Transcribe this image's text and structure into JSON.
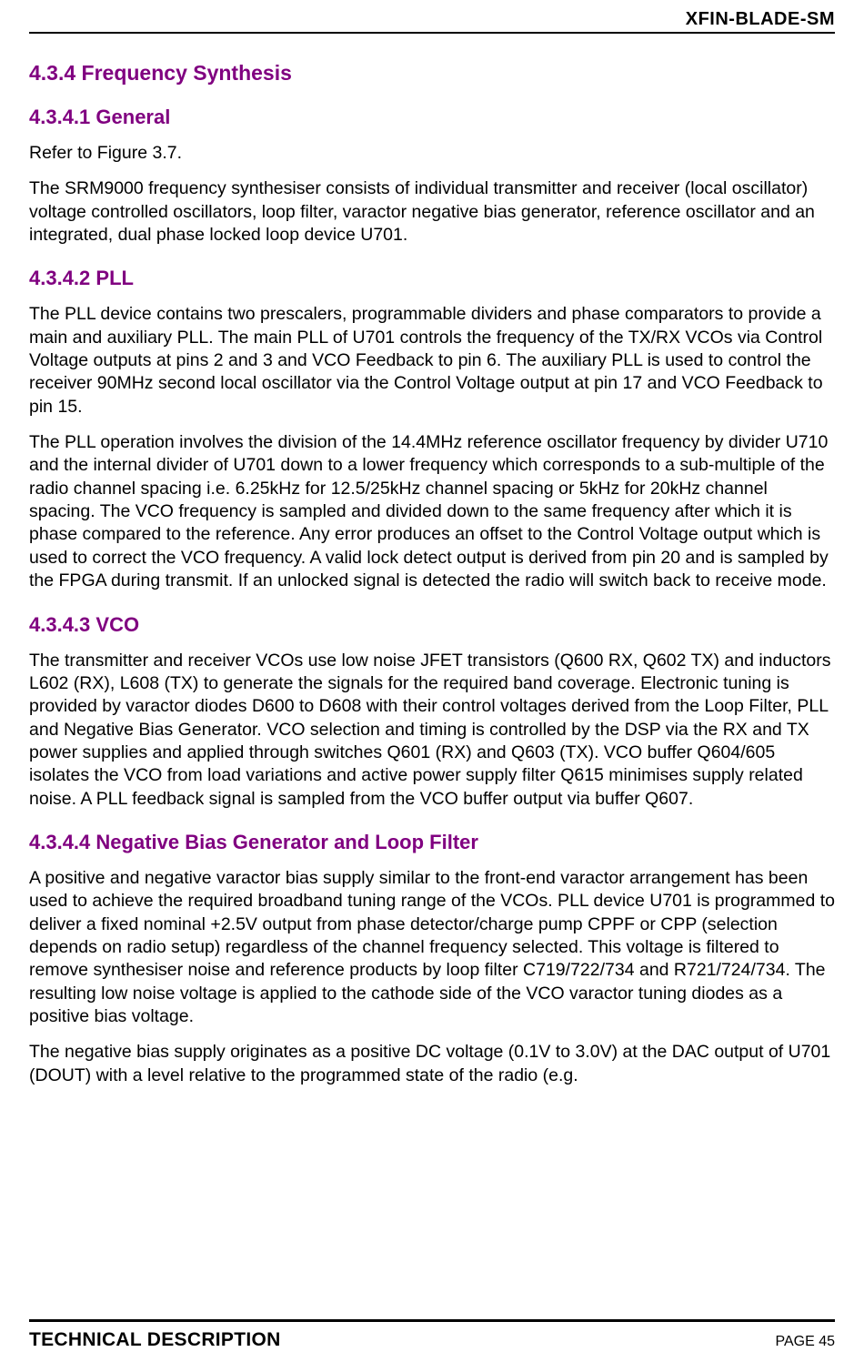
{
  "header": {
    "doc_id": "XFIN-BLADE-SM"
  },
  "sections": {
    "s434": {
      "number": "4.3.4",
      "title": "Frequency Synthesis"
    },
    "s4341": {
      "number": "4.3.4.1",
      "title": "General",
      "p1": "Refer to Figure 3.7.",
      "p2": "The SRM9000 frequency synthesiser consists of individual transmitter and receiver (local oscillator) voltage controlled oscillators, loop filter, varactor negative bias generator, reference oscillator and an integrated, dual phase locked loop device U701."
    },
    "s4342": {
      "number": "4.3.4.2",
      "title": "PLL",
      "p1": "The PLL device contains two prescalers, programmable dividers and phase comparators to provide a main and auxiliary PLL. The main PLL of U701 controls the frequency of the TX/RX VCOs via Control Voltage outputs at pins 2 and 3 and VCO Feedback to pin 6. The auxiliary PLL is used to control the receiver 90MHz second local oscillator via the Control Voltage output at pin 17 and VCO Feedback to pin 15.",
      "p2": "The PLL operation involves the division of the 14.4MHz reference oscillator frequency by divider U710 and the internal divider of U701 down to a lower frequency which corresponds to a sub-multiple of the radio channel spacing i.e. 6.25kHz for 12.5/25kHz channel spacing or 5kHz for 20kHz channel spacing. The VCO frequency is sampled and divided down to the same frequency after which it is phase compared to the reference. Any error produces an offset to the Control Voltage output which is used to correct the VCO frequency. A valid lock detect output is derived from pin 20 and is sampled by the FPGA during transmit. If an unlocked signal is detected the radio will switch back to receive mode."
    },
    "s4343": {
      "number": "4.3.4.3",
      "title": "VCO",
      "p1": "The transmitter and receiver VCOs use low noise JFET transistors (Q600 RX, Q602 TX) and inductors L602 (RX), L608 (TX) to generate the signals for the required band coverage. Electronic tuning is provided by varactor diodes D600 to D608 with their control voltages derived from the Loop Filter, PLL and Negative Bias Generator. VCO selection and timing is controlled by the DSP via the RX and TX power supplies and applied through switches Q601 (RX) and Q603 (TX). VCO buffer Q604/605 isolates the VCO from load variations and active power supply filter Q615 minimises supply related noise. A PLL feedback signal is sampled from the VCO buffer output via buffer Q607."
    },
    "s4344": {
      "number": "4.3.4.4",
      "title": "Negative Bias Generator and Loop Filter",
      "p1": "A positive and negative varactor bias supply similar to the front-end varactor arrangement has been used to achieve the required broadband tuning range of the VCOs. PLL device U701 is programmed to deliver a fixed nominal +2.5V output from phase detector/charge pump CPPF or CPP (selection depends on radio setup) regardless of the channel frequency selected. This voltage is filtered to remove synthesiser noise and reference products by loop filter C719/722/734 and R721/724/734. The resulting low noise voltage is applied to the cathode side of the VCO varactor tuning diodes as a positive bias voltage.",
      "p2": "The negative bias supply originates as a positive DC voltage (0.1V to 3.0V) at the DAC output of U701 (DOUT) with a level relative to the programmed state of the radio (e.g."
    }
  },
  "footer": {
    "title": "TECHNICAL DESCRIPTION",
    "page": "PAGE 45"
  },
  "colors": {
    "heading": "#800080",
    "text": "#000000",
    "rule": "#000000",
    "background": "#ffffff"
  },
  "typography": {
    "body_fontsize": 19.5,
    "section_heading_fontsize": 23,
    "subsection_heading_fontsize": 22,
    "footer_title_fontsize": 21,
    "footer_page_fontsize": 16,
    "header_fontsize": 20,
    "line_height": 1.3
  }
}
